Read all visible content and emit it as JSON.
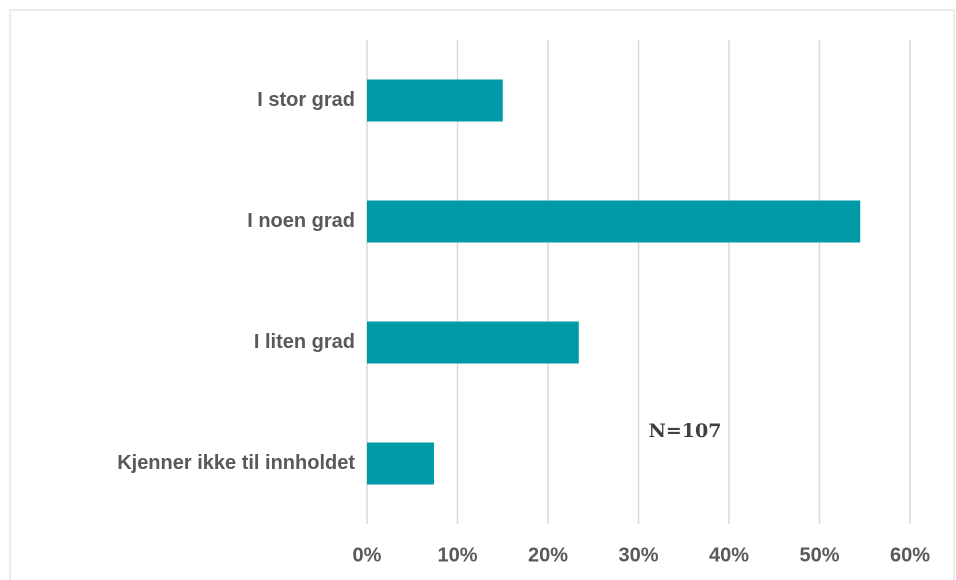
{
  "chart_data": {
    "type": "hbar",
    "categories": [
      "I stor grad",
      "I noen grad",
      "I liten grad",
      "Kjenner ikke til innholdet"
    ],
    "values": [
      15,
      54.5,
      23.4,
      7.4
    ],
    "color": "#009aa6",
    "xlim": [
      0,
      60
    ],
    "xticks": [
      {
        "value": 0,
        "label": "0%"
      },
      {
        "value": 10,
        "label": "10%"
      },
      {
        "value": 20,
        "label": "20%"
      },
      {
        "value": 30,
        "label": "30%"
      },
      {
        "value": 40,
        "label": "40%"
      },
      {
        "value": 50,
        "label": "50%"
      },
      {
        "value": 60,
        "label": "60%"
      }
    ],
    "grid": true,
    "annotations": [
      "N=107"
    ]
  }
}
